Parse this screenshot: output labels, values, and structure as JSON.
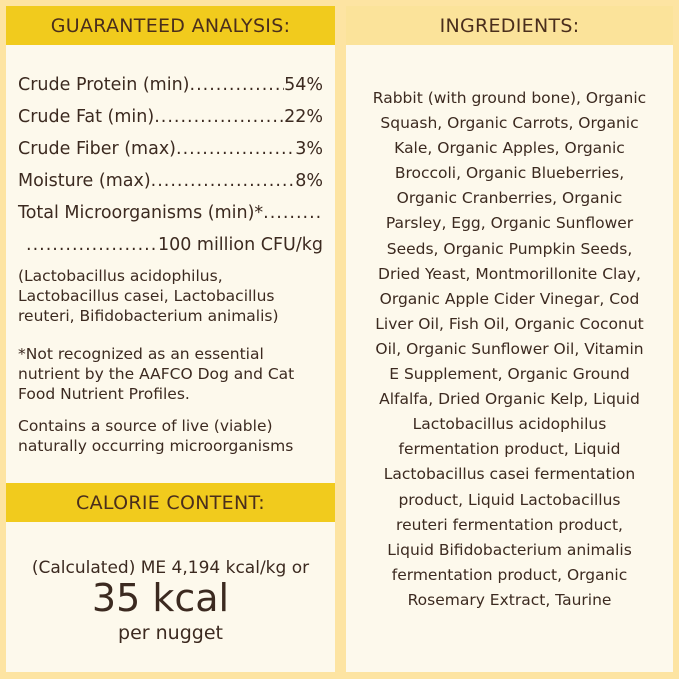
{
  "analysis": {
    "title": "GUARANTEED ANALYSIS:",
    "rows": [
      {
        "label": "Crude Protein (min)",
        "value": "54%"
      },
      {
        "label": "Crude Fat (min)",
        "value": "22%"
      },
      {
        "label": "Crude Fiber (max)",
        "value": "3%"
      },
      {
        "label": "Moisture (max)",
        "value": "8%"
      },
      {
        "label": "Total Microorganisms (min)*",
        "value": ""
      },
      {
        "label": "",
        "value": "100 million CFU/kg"
      }
    ],
    "strains": "(Lactobacillus acidophilus, Lactobacillus casei, Lactobacillus reuteri, Bifidobacterium animalis)",
    "footnote": "*Not recognized as an essential nutrient by the AAFCO Dog and Cat Food Nutrient Profiles.",
    "live_note": "Contains a source of live (viable) naturally occurring microorganisms"
  },
  "calorie": {
    "title": "CALORIE CONTENT:",
    "line1": "(Calculated) ME 4,194 kcal/kg or",
    "big": "35 kcal",
    "line3": "per nugget"
  },
  "ingredients": {
    "title": "INGREDIENTS:",
    "lines": [
      "Rabbit (with ground bone), Organic",
      "Squash, Organic Carrots, Organic",
      "Kale, Organic Apples, Organic",
      "Broccoli, Organic Blueberries,",
      "Organic Cranberries, Organic",
      "Parsley, Egg, Organic Sunflower",
      "Seeds, Organic Pumpkin Seeds,",
      "Dried Yeast, Montmorillonite Clay,",
      "Organic Apple Cider Vinegar, Cod",
      "Liver Oil, Fish Oil, Organic Coconut",
      "Oil, Organic Sunflower Oil, Vitamin",
      "E Supplement, Organic Ground",
      "Alfalfa, Dried Organic Kelp, Liquid",
      "Lactobacillus acidophilus",
      "fermentation product, Liquid",
      "Lactobacillus casei fermentation",
      "product, Liquid Lactobacillus",
      "reuteri fermentation product,",
      "Liquid Bifidobacterium animalis",
      "fermentation product, Organic",
      "Rosemary Extract, Taurine"
    ]
  }
}
